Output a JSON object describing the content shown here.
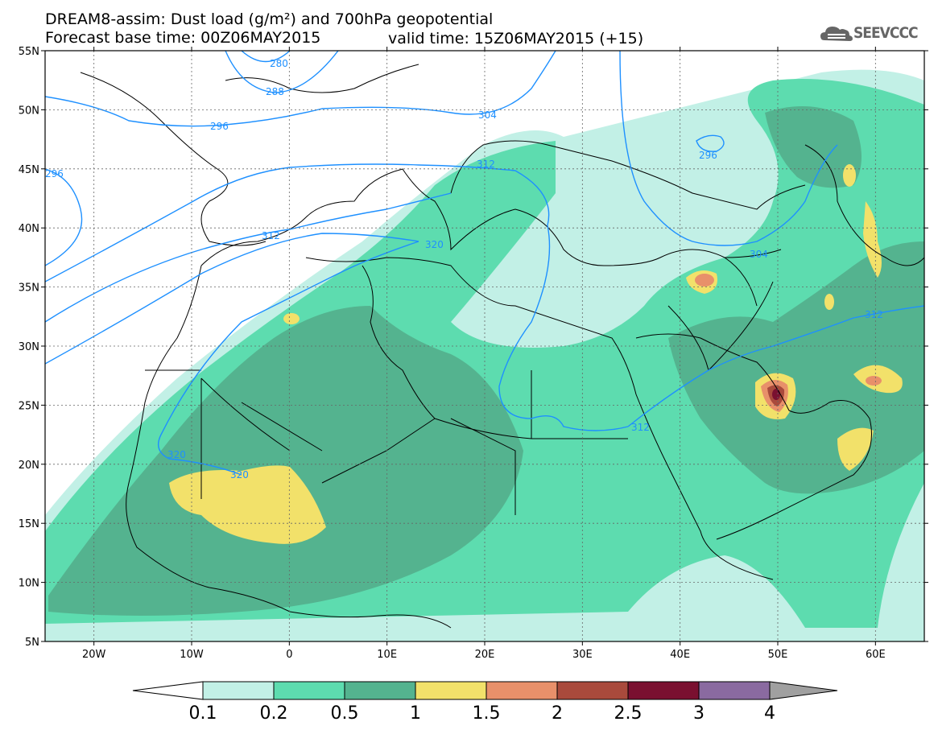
{
  "title": {
    "line1": "DREAM8-assim: Dust load (g/m²) and 700hPa geopotential",
    "base_time": "Forecast base time: 00Z06MAY2015",
    "valid_time": "valid time: 15Z06MAY2015 (+15)"
  },
  "logo": {
    "text": "SEEVCCC",
    "icon": "cloud-icon"
  },
  "map": {
    "lon_range": [
      -25,
      65
    ],
    "lat_range": [
      5,
      55
    ],
    "lat_labels": [
      "55N",
      "50N",
      "45N",
      "40N",
      "35N",
      "30N",
      "25N",
      "20N",
      "15N",
      "10N",
      "5N"
    ],
    "lon_labels": [
      "20W",
      "10W",
      "0",
      "10E",
      "20E",
      "30E",
      "40E",
      "50E",
      "60E"
    ],
    "contour_labels": [
      "280",
      "288",
      "296",
      "304",
      "312",
      "320",
      "296",
      "304",
      "312",
      "320",
      "320",
      "312",
      "296",
      "312"
    ]
  },
  "colorbar": {
    "labels": [
      "0.1",
      "0.2",
      "0.5",
      "1",
      "1.5",
      "2",
      "2.5",
      "3",
      "4"
    ],
    "colors": [
      "#ffffff",
      "#c2f0e6",
      "#5ddcaf",
      "#54b38f",
      "#f2e16a",
      "#e8906a",
      "#a94a3c",
      "#7a1030",
      "#8a6aa0",
      "#a0a0a0"
    ]
  }
}
